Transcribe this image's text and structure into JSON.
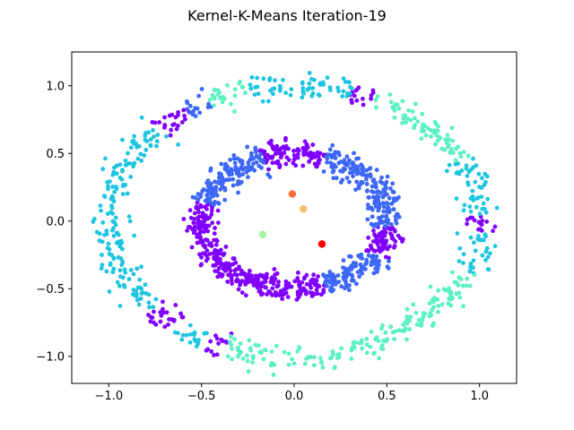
{
  "chart_data": {
    "type": "scatter",
    "title": "Kernel-K-Means Iteration-19",
    "xlabel": "",
    "ylabel": "",
    "xlim": [
      -1.2,
      1.2
    ],
    "ylim": [
      -1.2,
      1.25
    ],
    "xticks": [
      -1.0,
      -0.5,
      0.0,
      0.5,
      1.0
    ],
    "yticks": [
      -1.0,
      -0.5,
      0.0,
      0.5,
      1.0
    ],
    "xtick_labels": [
      "−1.0",
      "−0.5",
      "0.0",
      "0.5",
      "1.0"
    ],
    "ytick_labels": [
      "−1.0",
      "−0.5",
      "0.0",
      "0.5",
      "1.0"
    ],
    "grid": false,
    "legend": "none",
    "clusters": [
      {
        "color": "#8000ff",
        "ring": "outer",
        "radius": 1.0,
        "arcs_deg": [
          [
            64,
            72
          ],
          [
            125,
            137
          ],
          [
            220,
            232
          ],
          [
            241,
            248
          ],
          [
            355,
            360
          ],
          [
            0,
            3
          ]
        ]
      },
      {
        "color": "#3d67f7",
        "ring": "outer",
        "radius": 1.0,
        "arcs_deg": [
          [
            117,
            125
          ]
        ]
      },
      {
        "color": "#1ec5e1",
        "ring": "outer",
        "radius": 1.0,
        "arcs_deg": [
          [
            72,
            104
          ],
          [
            137,
            220
          ],
          [
            232,
            241
          ],
          [
            3,
            27
          ],
          [
            338,
            355
          ]
        ]
      },
      {
        "color": "#5cf0c5",
        "ring": "outer",
        "radius": 1.0,
        "arcs_deg": [
          [
            27,
            64
          ],
          [
            104,
            117
          ],
          [
            248,
            338
          ]
        ]
      },
      {
        "color": "#8000ff",
        "ring": "inner",
        "radius": 0.5,
        "arcs_deg": [
          [
            70,
            110
          ],
          [
            165,
            290
          ],
          [
            330,
            355
          ]
        ]
      },
      {
        "color": "#3d67f7",
        "ring": "inner",
        "radius": 0.5,
        "arcs_deg": [
          [
            0,
            70
          ],
          [
            110,
            165
          ],
          [
            290,
            330
          ],
          [
            355,
            360
          ]
        ]
      }
    ],
    "centroids": [
      {
        "x": -0.01,
        "y": 0.2,
        "color": "#ff6e3c"
      },
      {
        "x": 0.05,
        "y": 0.09,
        "color": "#f7c16a"
      },
      {
        "x": -0.17,
        "y": -0.1,
        "color": "#a3f59e"
      },
      {
        "x": 0.15,
        "y": -0.17,
        "color": "#ff0000"
      }
    ]
  }
}
